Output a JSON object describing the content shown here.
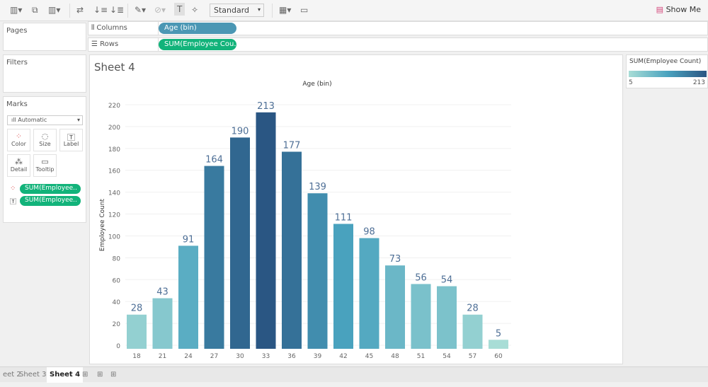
{
  "toolbar": {
    "mark_size": "Standard",
    "show_me": "Show Me"
  },
  "panels": {
    "pages": "Pages",
    "filters": "Filters",
    "marks": "Marks",
    "mark_type": "Automatic",
    "cards": [
      {
        "label": "Color",
        "icon": "color-dots-icon"
      },
      {
        "label": "Size",
        "icon": "size-icon"
      },
      {
        "label": "Label",
        "icon": "label-icon"
      },
      {
        "label": "Detail",
        "icon": "detail-icon"
      },
      {
        "label": "Tooltip",
        "icon": "tooltip-icon"
      }
    ],
    "mark_pills": [
      "SUM(Employee..",
      "SUM(Employee.."
    ]
  },
  "shelves": {
    "columns_label": "Columns",
    "columns_pill": "Age (bin)",
    "rows_label": "Rows",
    "rows_pill": "SUM(Employee Cou.."
  },
  "sheet": {
    "title": "Sheet 4"
  },
  "legend": {
    "title": "SUM(Employee Count)",
    "min": "5",
    "max": "213",
    "colors": [
      "#a8ddd6",
      "#4aa3bf",
      "#2a5683"
    ]
  },
  "tabs": [
    "eet 2",
    "Sheet 3",
    "Sheet 4"
  ],
  "active_tab": "Sheet 4",
  "colors": {
    "columns_pill": "#4b97b4",
    "measure_pill": "#12b37a"
  },
  "chart_data": {
    "type": "bar",
    "title": "Age (bin)",
    "xlabel": "",
    "ylabel": "Employee Count",
    "categories": [
      "18",
      "21",
      "24",
      "27",
      "30",
      "33",
      "36",
      "39",
      "42",
      "45",
      "48",
      "51",
      "54",
      "57",
      "60"
    ],
    "values": [
      28,
      43,
      91,
      164,
      190,
      213,
      177,
      139,
      111,
      98,
      73,
      56,
      54,
      28,
      5
    ],
    "ylim": [
      0,
      220
    ],
    "yticks": [
      0,
      20,
      40,
      60,
      80,
      100,
      120,
      140,
      160,
      180,
      200,
      220
    ],
    "grid": true,
    "data_labels": true,
    "color_scale": "sequential blue-teal"
  }
}
